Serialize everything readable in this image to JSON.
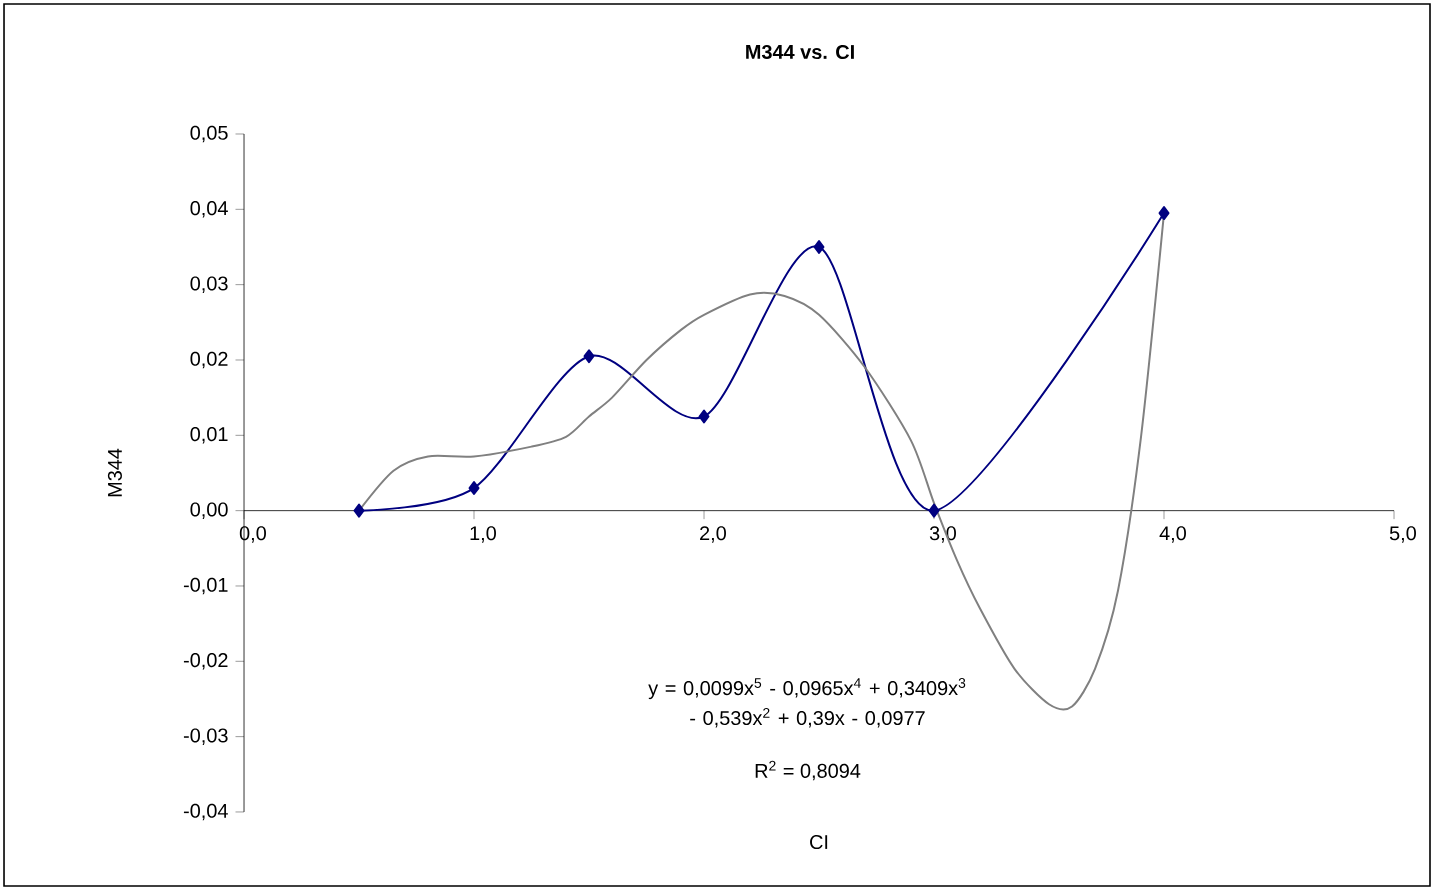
{
  "chart_data": {
    "type": "line",
    "title": "M344 vs. CI",
    "xlabel": "CI",
    "ylabel": "M344",
    "xlim": [
      0,
      5
    ],
    "ylim": [
      -0.04,
      0.05
    ],
    "xticks": [
      {
        "value": 0,
        "label": "0,0"
      },
      {
        "value": 1,
        "label": "1,0"
      },
      {
        "value": 2,
        "label": "2,0"
      },
      {
        "value": 3,
        "label": "3,0"
      },
      {
        "value": 4,
        "label": "4,0"
      },
      {
        "value": 5,
        "label": "5,0"
      }
    ],
    "yticks": [
      {
        "value": -0.04,
        "label": "-0,04"
      },
      {
        "value": -0.03,
        "label": "-0,03"
      },
      {
        "value": -0.02,
        "label": "-0,02"
      },
      {
        "value": -0.01,
        "label": "-0,01"
      },
      {
        "value": 0,
        "label": "0,00"
      },
      {
        "value": 0.01,
        "label": "0,01"
      },
      {
        "value": 0.02,
        "label": "0,02"
      },
      {
        "value": 0.03,
        "label": "0,03"
      },
      {
        "value": 0.04,
        "label": "0,04"
      },
      {
        "value": 0.05,
        "label": "0,05"
      }
    ],
    "series": [
      {
        "color": "#000080",
        "marker": "diamond",
        "x": [
          0.5,
          1,
          1.5,
          2,
          2.5,
          3,
          4
        ],
        "values": [
          0,
          0.003,
          0.0205,
          0.0125,
          0.035,
          0,
          0.0395
        ]
      },
      {
        "type": "line",
        "color": "#808080",
        "marker": "none",
        "x": [
          0.5,
          0.65,
          0.8,
          1.0,
          1.25,
          1.4,
          1.5,
          1.6,
          1.75,
          1.9,
          2.0,
          2.2,
          2.35,
          2.5,
          2.7,
          2.9,
          3.0,
          3.1,
          3.2,
          3.35,
          3.5,
          3.6,
          3.7,
          3.8,
          3.9,
          4.0
        ],
        "values": [
          0,
          0.0053,
          0.0072,
          0.0072,
          0.0085,
          0.0098,
          0.0125,
          0.015,
          0.02,
          0.024,
          0.026,
          0.0287,
          0.0285,
          0.026,
          0.019,
          0.0093,
          0.001,
          -0.0066,
          -0.013,
          -0.021,
          -0.0257,
          -0.026,
          -0.021,
          -0.0106,
          0.0098,
          0.0395
        ]
      }
    ],
    "annotations": [
      "y = 0,0099x$^{5}$ - 0,0965x$^{4}$ + 0,3409x$^{3}$ - 0,539x$^{2}$ + 0,39x - 0,0977",
      "R$^{2}$ = 0,8094"
    ]
  }
}
